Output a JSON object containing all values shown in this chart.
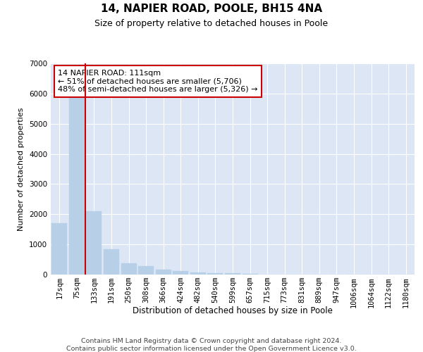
{
  "title1": "14, NAPIER ROAD, POOLE, BH15 4NA",
  "title2": "Size of property relative to detached houses in Poole",
  "xlabel": "Distribution of detached houses by size in Poole",
  "ylabel": "Number of detached properties",
  "categories": [
    "17sqm",
    "75sqm",
    "133sqm",
    "191sqm",
    "250sqm",
    "308sqm",
    "366sqm",
    "424sqm",
    "482sqm",
    "540sqm",
    "599sqm",
    "657sqm",
    "715sqm",
    "773sqm",
    "831sqm",
    "889sqm",
    "947sqm",
    "1006sqm",
    "1064sqm",
    "1122sqm",
    "1180sqm"
  ],
  "values": [
    1700,
    5900,
    2100,
    830,
    380,
    290,
    160,
    110,
    75,
    55,
    40,
    30,
    0,
    0,
    0,
    0,
    0,
    0,
    0,
    0,
    0
  ],
  "bar_color": "#b8cfe8",
  "bar_edgecolor": "#b8cfe8",
  "vline_color": "#cc0000",
  "vline_x": 1.5,
  "annotation_text": "14 NAPIER ROAD: 111sqm\n← 51% of detached houses are smaller (5,706)\n48% of semi-detached houses are larger (5,326) →",
  "annotation_box_edgecolor": "#cc0000",
  "annotation_fontsize": 8,
  "background_color": "#ffffff",
  "plot_bg_color": "#dce6f5",
  "footer1": "Contains HM Land Registry data © Crown copyright and database right 2024.",
  "footer2": "Contains public sector information licensed under the Open Government Licence v3.0.",
  "ylim": [
    0,
    7000
  ],
  "yticks": [
    0,
    1000,
    2000,
    3000,
    4000,
    5000,
    6000,
    7000
  ],
  "title1_fontsize": 11,
  "title2_fontsize": 9,
  "xlabel_fontsize": 8.5,
  "ylabel_fontsize": 8,
  "tick_fontsize": 7.5,
  "footer_fontsize": 6.8
}
